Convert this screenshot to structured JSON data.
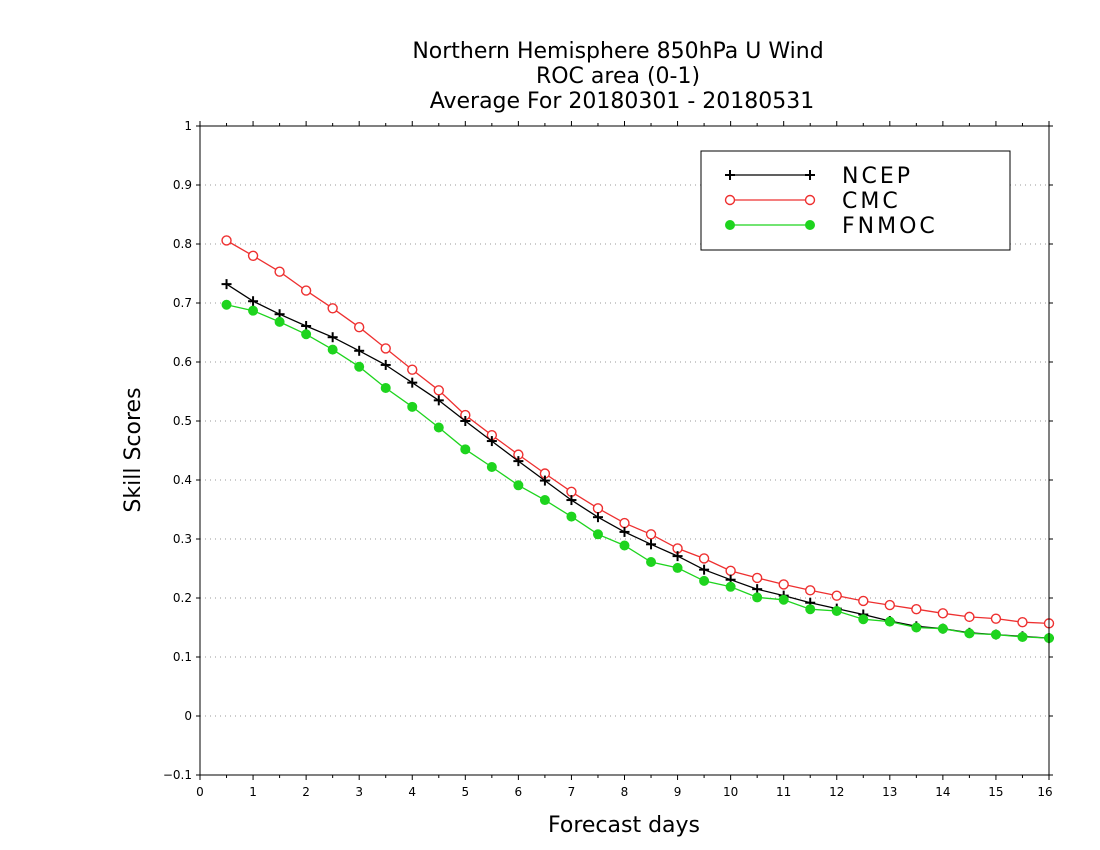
{
  "chart_data": {
    "type": "line",
    "title": [
      "Northern Hemisphere 850hPa U Wind",
      "ROC area (0-1)",
      "Average For 20180301 - 20180531"
    ],
    "xlabel": "Forecast days",
    "ylabel": "Skill Scores",
    "xlim": [
      0,
      16
    ],
    "ylim": [
      -0.1,
      1
    ],
    "xticks": [
      "0",
      "1",
      "2",
      "3",
      "4",
      "5",
      "6",
      "7",
      "8",
      "9",
      "10",
      "11",
      "12",
      "13",
      "14",
      "15",
      "16"
    ],
    "yticks": [
      "−0.1",
      "0",
      "0.1",
      "0.2",
      "0.3",
      "0.4",
      "0.5",
      "0.6",
      "0.7",
      "0.8",
      "0.9",
      "1"
    ],
    "grid": true,
    "legend_position": "top-right",
    "x": [
      0.5,
      1,
      1.5,
      2,
      2.5,
      3,
      3.5,
      4,
      4.5,
      5,
      5.5,
      6,
      6.5,
      7,
      7.5,
      8,
      8.5,
      9,
      9.5,
      10,
      10.5,
      11,
      11.5,
      12,
      12.5,
      13,
      13.5,
      14,
      14.5,
      15,
      15.5,
      16
    ],
    "series": [
      {
        "name": "NCEP",
        "color": "#000000",
        "marker": "plus",
        "values": [
          0.732,
          0.703,
          0.681,
          0.661,
          0.642,
          0.619,
          0.595,
          0.565,
          0.535,
          0.5,
          0.466,
          0.432,
          0.399,
          0.366,
          0.337,
          0.312,
          0.291,
          0.271,
          0.248,
          0.231,
          0.215,
          0.204,
          0.192,
          0.182,
          0.172,
          0.161,
          0.152,
          0.148,
          0.141,
          0.138,
          0.135,
          0.132
        ]
      },
      {
        "name": "CMC",
        "color": "#ee3030",
        "marker": "open-circle",
        "values": [
          0.806,
          0.78,
          0.753,
          0.721,
          0.691,
          0.659,
          0.623,
          0.587,
          0.552,
          0.51,
          0.476,
          0.443,
          0.411,
          0.38,
          0.352,
          0.327,
          0.308,
          0.284,
          0.267,
          0.246,
          0.234,
          0.223,
          0.213,
          0.204,
          0.195,
          0.188,
          0.181,
          0.174,
          0.168,
          0.165,
          0.159,
          0.157
        ]
      },
      {
        "name": "FNMOC",
        "color": "#1ed41e",
        "marker": "filled-circle",
        "values": [
          0.697,
          0.687,
          0.668,
          0.647,
          0.621,
          0.592,
          0.556,
          0.524,
          0.489,
          0.452,
          0.422,
          0.391,
          0.366,
          0.338,
          0.308,
          0.289,
          0.261,
          0.251,
          0.229,
          0.219,
          0.201,
          0.197,
          0.181,
          0.178,
          0.164,
          0.16,
          0.15,
          0.148,
          0.14,
          0.138,
          0.134,
          0.132
        ]
      }
    ]
  }
}
